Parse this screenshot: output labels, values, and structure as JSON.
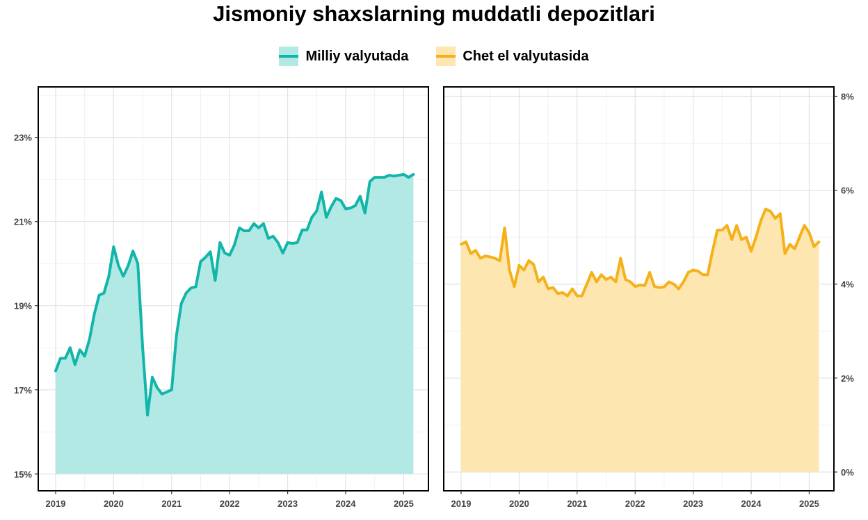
{
  "title": "Jismoniy shaxslarning muddatli depozitlari",
  "legend": [
    {
      "label": "Milliy valyutada",
      "line_color": "#12b5aa",
      "fill_color": "#b3e9e4"
    },
    {
      "label": "Chet el valyutasida",
      "line_color": "#f5b11a",
      "fill_color": "#fde6b0"
    }
  ],
  "chart_data": [
    {
      "type": "area",
      "series_name": "Milliy valyutada",
      "x_start": "2019-01",
      "x_step": "month",
      "x_ticks": [
        "2019",
        "2020",
        "2021",
        "2022",
        "2023",
        "2024",
        "2025"
      ],
      "ylim": [
        14.6,
        24.2
      ],
      "y_ticks": [
        "15%",
        "17%",
        "19%",
        "21%",
        "23%"
      ],
      "y_tick_values": [
        15,
        17,
        19,
        21,
        23
      ],
      "y_axis_side": "left",
      "baseline": 15,
      "line_color": "#12b5aa",
      "fill_color": "#b3e9e4",
      "grid": true,
      "values": [
        17.45,
        17.75,
        17.75,
        18.0,
        17.6,
        17.95,
        17.8,
        18.2,
        18.8,
        19.25,
        19.3,
        19.7,
        20.4,
        19.95,
        19.7,
        19.95,
        20.3,
        20.0,
        18.0,
        16.4,
        17.3,
        17.05,
        16.9,
        16.95,
        17.0,
        18.3,
        19.05,
        19.3,
        19.42,
        19.45,
        20.05,
        20.15,
        20.28,
        19.6,
        20.5,
        20.25,
        20.2,
        20.45,
        20.85,
        20.78,
        20.78,
        20.95,
        20.85,
        20.95,
        20.6,
        20.65,
        20.5,
        20.25,
        20.5,
        20.48,
        20.5,
        20.8,
        20.8,
        21.1,
        21.25,
        21.7,
        21.1,
        21.35,
        21.55,
        21.5,
        21.3,
        21.32,
        21.38,
        21.6,
        21.2,
        21.95,
        22.05,
        22.05,
        22.05,
        22.1,
        22.08,
        22.1,
        22.12,
        22.05,
        22.12
      ]
    },
    {
      "type": "area",
      "series_name": "Chet el valyutasida",
      "x_start": "2019-01",
      "x_step": "month",
      "x_ticks": [
        "2019",
        "2020",
        "2021",
        "2022",
        "2023",
        "2024",
        "2025"
      ],
      "ylim": [
        -0.4,
        8.2
      ],
      "y_ticks": [
        "0%",
        "2%",
        "4%",
        "6%",
        "8%"
      ],
      "y_tick_values": [
        0,
        2,
        4,
        6,
        8
      ],
      "y_axis_side": "right",
      "baseline": 0,
      "line_color": "#f5b11a",
      "fill_color": "#fde6b0",
      "grid": true,
      "values": [
        4.85,
        4.9,
        4.65,
        4.72,
        4.55,
        4.6,
        4.58,
        4.55,
        4.5,
        5.2,
        4.3,
        3.95,
        4.4,
        4.3,
        4.5,
        4.42,
        4.05,
        4.15,
        3.9,
        3.93,
        3.8,
        3.82,
        3.75,
        3.9,
        3.75,
        3.75,
        4.0,
        4.25,
        4.05,
        4.2,
        4.1,
        4.15,
        4.05,
        4.55,
        4.1,
        4.05,
        3.95,
        3.98,
        3.97,
        4.25,
        3.95,
        3.93,
        3.94,
        4.05,
        4.0,
        3.9,
        4.05,
        4.25,
        4.3,
        4.28,
        4.2,
        4.2,
        4.7,
        5.15,
        5.15,
        5.25,
        4.95,
        5.25,
        4.95,
        5.0,
        4.7,
        5.0,
        5.35,
        5.6,
        5.55,
        5.4,
        5.5,
        4.65,
        4.85,
        4.75,
        5.0,
        5.25,
        5.1,
        4.8,
        4.9
      ]
    }
  ]
}
